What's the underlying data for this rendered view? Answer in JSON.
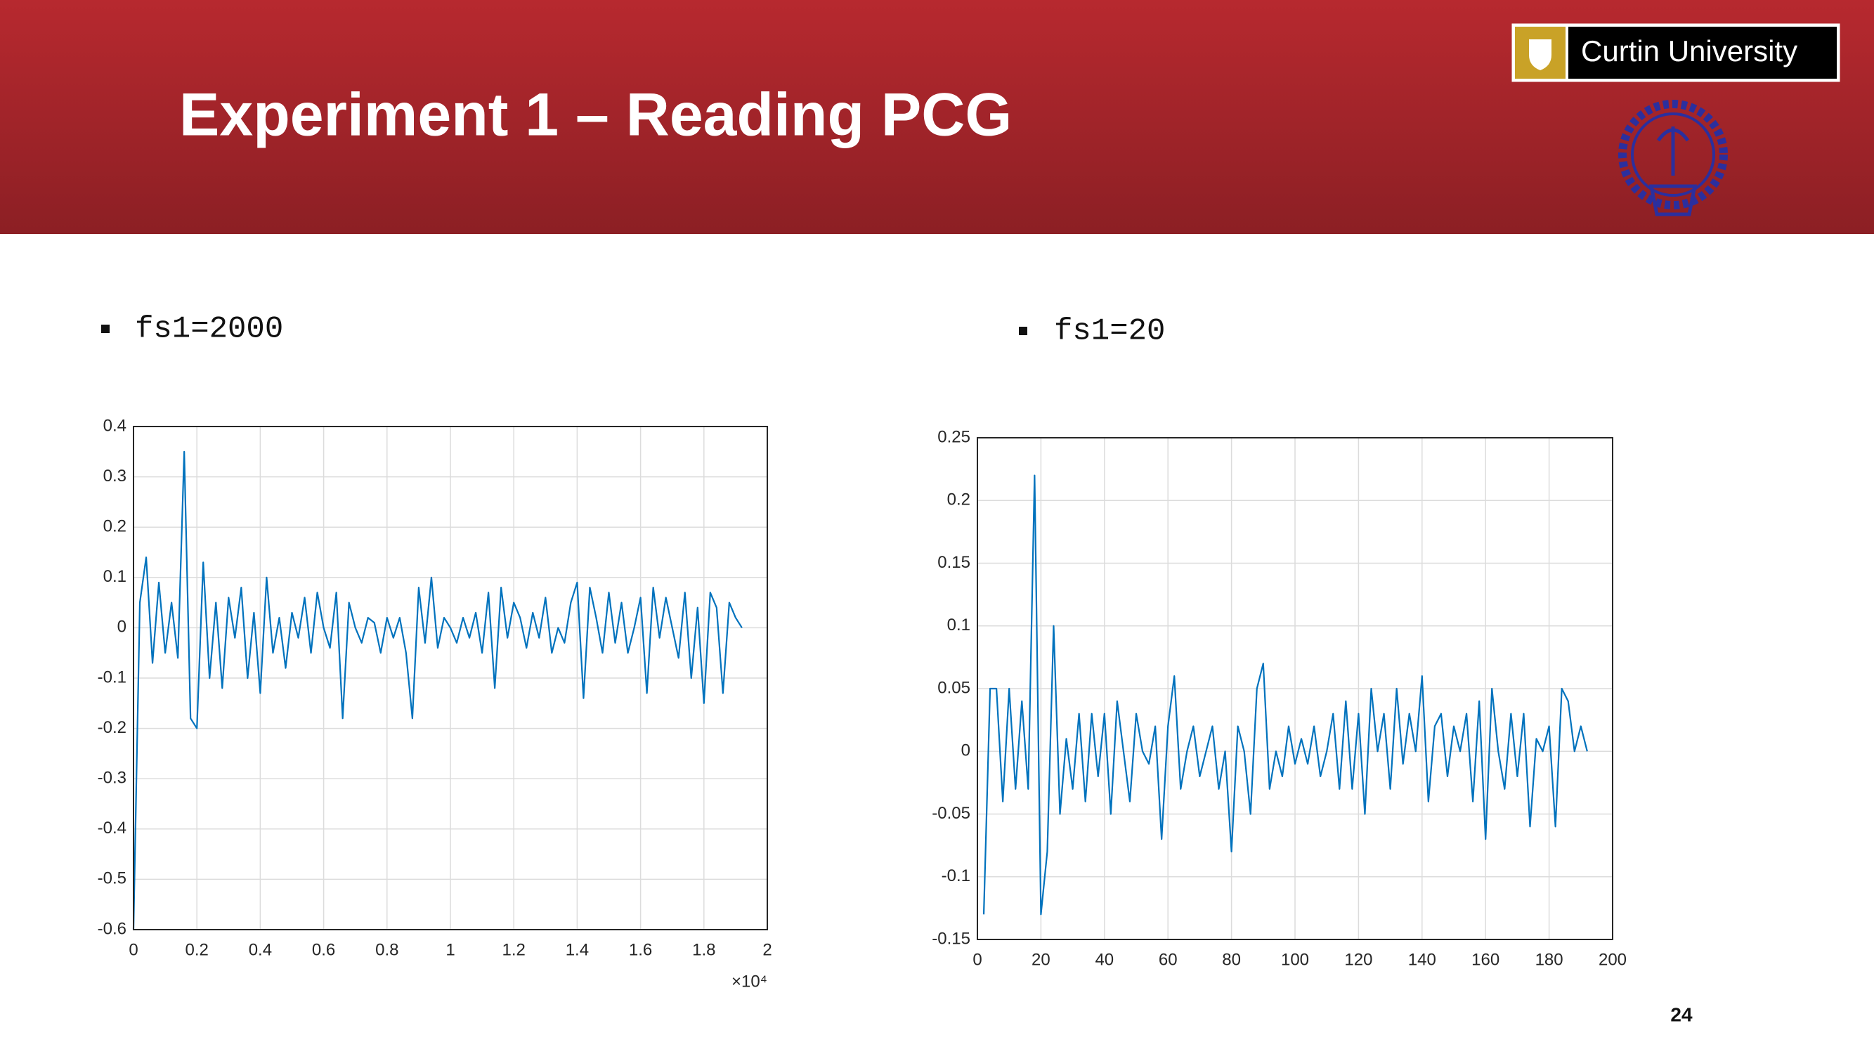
{
  "header": {
    "title": "Experiment 1 – Reading PCG",
    "logo_text": "Curtin University"
  },
  "bullets": [
    "fs1=2000",
    "fs1=20"
  ],
  "page_number": "24",
  "chart_data": [
    {
      "type": "line",
      "color": "#0072bd",
      "grid": true,
      "x_multiplier": "×10⁴",
      "xlim": [
        0,
        20000
      ],
      "xticks": [
        0,
        {
          "value": 2000,
          "label": "0.2"
        },
        {
          "value": 4000,
          "label": "0.4"
        },
        {
          "value": 6000,
          "label": "0.6"
        },
        {
          "value": 8000,
          "label": "0.8"
        },
        {
          "value": 10000,
          "label": "1"
        },
        {
          "value": 12000,
          "label": "1.2"
        },
        {
          "value": 14000,
          "label": "1.4"
        },
        {
          "value": 16000,
          "label": "1.6"
        },
        {
          "value": 18000,
          "label": "1.8"
        },
        {
          "value": 20000,
          "label": "2"
        }
      ],
      "ylim": [
        -0.6,
        0.4
      ],
      "yticks": [
        -0.6,
        -0.5,
        -0.4,
        -0.3,
        -0.2,
        -0.1,
        0,
        0.1,
        0.2,
        0.3,
        0.4
      ],
      "x": [
        0,
        200,
        400,
        600,
        800,
        1000,
        1200,
        1400,
        1600,
        1800,
        2000,
        2200,
        2400,
        2600,
        2800,
        3000,
        3200,
        3400,
        3600,
        3800,
        4000,
        4200,
        4400,
        4600,
        4800,
        5000,
        5200,
        5400,
        5600,
        5800,
        6000,
        6200,
        6400,
        6600,
        6800,
        7000,
        7200,
        7400,
        7600,
        7800,
        8000,
        8200,
        8400,
        8600,
        8800,
        9000,
        9200,
        9400,
        9600,
        9800,
        10000,
        10200,
        10400,
        10600,
        10800,
        11000,
        11200,
        11400,
        11600,
        11800,
        12000,
        12200,
        12400,
        12600,
        12800,
        13000,
        13200,
        13400,
        13600,
        13800,
        14000,
        14200,
        14400,
        14600,
        14800,
        15000,
        15200,
        15400,
        15600,
        15800,
        16000,
        16200,
        16400,
        16600,
        16800,
        17000,
        17200,
        17400,
        17600,
        17800,
        18000,
        18200,
        18400,
        18600,
        18800,
        19000,
        19200
      ],
      "values": [
        -0.6,
        0.05,
        0.14,
        -0.07,
        0.09,
        -0.05,
        0.05,
        -0.06,
        0.35,
        -0.18,
        -0.2,
        0.13,
        -0.1,
        0.05,
        -0.12,
        0.06,
        -0.02,
        0.08,
        -0.1,
        0.03,
        -0.13,
        0.1,
        -0.05,
        0.02,
        -0.08,
        0.03,
        -0.02,
        0.06,
        -0.05,
        0.07,
        0.0,
        -0.04,
        0.07,
        -0.18,
        0.05,
        0.0,
        -0.03,
        0.02,
        0.01,
        -0.05,
        0.02,
        -0.02,
        0.02,
        -0.05,
        -0.18,
        0.08,
        -0.03,
        0.1,
        -0.04,
        0.02,
        0.0,
        -0.03,
        0.02,
        -0.02,
        0.03,
        -0.05,
        0.07,
        -0.12,
        0.08,
        -0.02,
        0.05,
        0.02,
        -0.04,
        0.03,
        -0.02,
        0.06,
        -0.05,
        0.0,
        -0.03,
        0.05,
        0.09,
        -0.14,
        0.08,
        0.02,
        -0.05,
        0.07,
        -0.03,
        0.05,
        -0.05,
        0.0,
        0.06,
        -0.13,
        0.08,
        -0.02,
        0.06,
        0.0,
        -0.06,
        0.07,
        -0.1,
        0.04,
        -0.15,
        0.07,
        0.04,
        -0.13,
        0.05,
        0.02,
        0.0
      ]
    },
    {
      "type": "line",
      "color": "#0072bd",
      "grid": true,
      "xlim": [
        0,
        200
      ],
      "xticks": [
        0,
        20,
        40,
        60,
        80,
        100,
        120,
        140,
        160,
        180,
        200
      ],
      "ylim": [
        -0.15,
        0.25
      ],
      "yticks": [
        -0.15,
        -0.1,
        -0.05,
        0,
        0.05,
        0.1,
        0.15,
        0.2,
        0.25
      ],
      "x": [
        2,
        4,
        6,
        8,
        10,
        12,
        14,
        16,
        18,
        20,
        22,
        24,
        26,
        28,
        30,
        32,
        34,
        36,
        38,
        40,
        42,
        44,
        46,
        48,
        50,
        52,
        54,
        56,
        58,
        60,
        62,
        64,
        66,
        68,
        70,
        72,
        74,
        76,
        78,
        80,
        82,
        84,
        86,
        88,
        90,
        92,
        94,
        96,
        98,
        100,
        102,
        104,
        106,
        108,
        110,
        112,
        114,
        116,
        118,
        120,
        122,
        124,
        126,
        128,
        130,
        132,
        134,
        136,
        138,
        140,
        142,
        144,
        146,
        148,
        150,
        152,
        154,
        156,
        158,
        160,
        162,
        164,
        166,
        168,
        170,
        172,
        174,
        176,
        178,
        180,
        182,
        184,
        186,
        188,
        190,
        192
      ],
      "values": [
        -0.13,
        0.05,
        0.05,
        -0.04,
        0.05,
        -0.03,
        0.04,
        -0.03,
        0.22,
        -0.13,
        -0.08,
        0.1,
        -0.05,
        0.01,
        -0.03,
        0.03,
        -0.04,
        0.03,
        -0.02,
        0.03,
        -0.05,
        0.04,
        0.0,
        -0.04,
        0.03,
        0.0,
        -0.01,
        0.02,
        -0.07,
        0.02,
        0.06,
        -0.03,
        0.0,
        0.02,
        -0.02,
        0.0,
        0.02,
        -0.03,
        0.0,
        -0.08,
        0.02,
        0.0,
        -0.05,
        0.05,
        0.07,
        -0.03,
        0.0,
        -0.02,
        0.02,
        -0.01,
        0.01,
        -0.01,
        0.02,
        -0.02,
        0.0,
        0.03,
        -0.03,
        0.04,
        -0.03,
        0.03,
        -0.05,
        0.05,
        0.0,
        0.03,
        -0.03,
        0.05,
        -0.01,
        0.03,
        0.0,
        0.06,
        -0.04,
        0.02,
        0.03,
        -0.02,
        0.02,
        0.0,
        0.03,
        -0.04,
        0.04,
        -0.07,
        0.05,
        0.0,
        -0.03,
        0.03,
        -0.02,
        0.03,
        -0.06,
        0.01,
        0.0,
        0.02,
        -0.06,
        0.05,
        0.04,
        0.0,
        0.02,
        0.0
      ]
    }
  ]
}
